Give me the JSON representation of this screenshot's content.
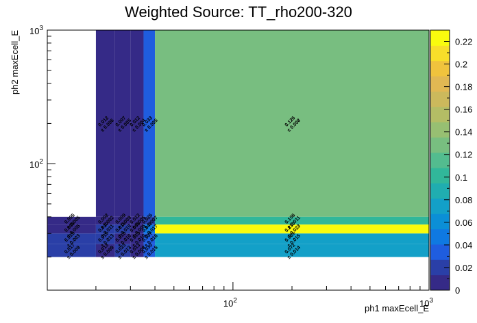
{
  "chart_data": {
    "type": "heatmap",
    "title": "Weighted Source: TT_rho200-320",
    "xlabel": "ph1 maxEcell_E",
    "ylabel": "ph2 maxEcell_E",
    "x_scale": "log",
    "y_scale": "log",
    "xlim": [
      11.3,
      1000
    ],
    "ylim": [
      11.3,
      1000
    ],
    "x_tick_labels": [
      "10^2",
      "10^3"
    ],
    "y_tick_labels": [
      "10^2",
      "10^3"
    ],
    "zlim": [
      0,
      0.23
    ],
    "colorbar_ticks": [
      0,
      0.02,
      0.04,
      0.06,
      0.08,
      0.1,
      0.12,
      0.14,
      0.16,
      0.18,
      0.2,
      0.22
    ],
    "colorbar_tick_labels": [
      "0",
      "0.02",
      "0.04",
      "0.06",
      "0.08",
      "0.1",
      "0.12",
      "0.14",
      "0.16",
      "0.18",
      "0.2",
      "0.22"
    ],
    "palette": [
      "#352a87",
      "#2a3fa7",
      "#1f5ddf",
      "#0f79e1",
      "#0b8fd6",
      "#13a0c8",
      "#20adb0",
      "#31b79a",
      "#53bc8f",
      "#78be80",
      "#97bf72",
      "#b4bd65",
      "#ccb95c",
      "#e1b853",
      "#f0c33d",
      "#f8de2a",
      "#f9fb0e"
    ],
    "x_edges": [
      11.3,
      20,
      25,
      30,
      35,
      40,
      1000
    ],
    "y_edges": [
      11.3,
      15,
      20,
      25,
      30,
      35,
      40,
      1000
    ],
    "cells": [
      {
        "x": 0,
        "y": 6,
        "value": null,
        "error": null
      },
      {
        "x": 1,
        "y": 6,
        "value": 0.012,
        "error": 0.006
      },
      {
        "x": 2,
        "y": 6,
        "value": 0.007,
        "error": 0.005
      },
      {
        "x": 3,
        "y": 6,
        "value": 0.012,
        "error": 0.004
      },
      {
        "x": 4,
        "y": 6,
        "value": 0.033,
        "error": 0.005
      },
      {
        "x": 5,
        "y": 6,
        "value": 0.126,
        "error": 0.008
      },
      {
        "x": 0,
        "y": 5,
        "value": 0.005,
        "error": 0.005
      },
      {
        "x": 1,
        "y": 5,
        "value": 0.002,
        "error": 0.002
      },
      {
        "x": 2,
        "y": 5,
        "value": 0.009,
        "error": 0.009
      },
      {
        "x": 3,
        "y": 5,
        "value": 0.012,
        "error": 0.005
      },
      {
        "x": 4,
        "y": 5,
        "value": 0.025,
        "error": 0.007
      },
      {
        "x": 5,
        "y": 5,
        "value": 0.106,
        "error": 0.011
      },
      {
        "x": 0,
        "y": 4,
        "value": 0.008,
        "error": 0.005
      },
      {
        "x": 1,
        "y": 4,
        "value": 0.02,
        "error": 0.011
      },
      {
        "x": 2,
        "y": 4,
        "value": 0.015,
        "error": 0.01
      },
      {
        "x": 3,
        "y": 4,
        "value": 0.008,
        "error": 0.005
      },
      {
        "x": 4,
        "y": 4,
        "value": 0.047,
        "error": 0.017
      },
      {
        "x": 5,
        "y": 4,
        "value": 0.23,
        "error": 0.023
      },
      {
        "x": 0,
        "y": 3,
        "value": 0.015,
        "error": 0.003
      },
      {
        "x": 1,
        "y": 3,
        "value": 0.015,
        "error": 0.013
      },
      {
        "x": 2,
        "y": 3,
        "value": 0.013,
        "error": 0.01
      },
      {
        "x": 3,
        "y": 3,
        "value": 0.013,
        "error": 0.01
      },
      {
        "x": 4,
        "y": 3,
        "value": 0.037,
        "error": 0.016
      },
      {
        "x": 5,
        "y": 3,
        "value": 0.081,
        "error": 0.015
      },
      {
        "x": 0,
        "y": 2,
        "value": 0.017,
        "error": 0.009
      },
      {
        "x": 1,
        "y": 2,
        "value": 0.013,
        "error": 0.009
      },
      {
        "x": 2,
        "y": 2,
        "value": 0.023,
        "error": 0.013
      },
      {
        "x": 3,
        "y": 2,
        "value": 0.013,
        "error": 0.008
      },
      {
        "x": 4,
        "y": 2,
        "value": 0.03,
        "error": 0.015
      },
      {
        "x": 5,
        "y": 2,
        "value": 0.072,
        "error": 0.014
      }
    ]
  }
}
